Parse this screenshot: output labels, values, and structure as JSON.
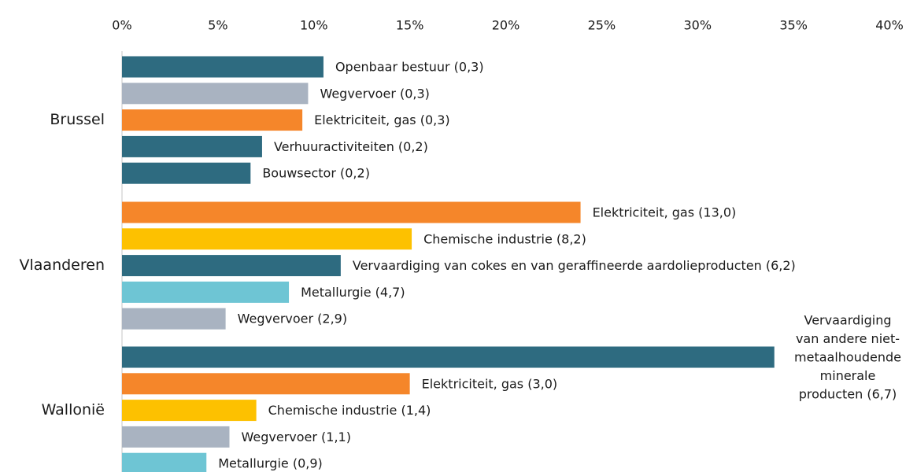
{
  "chart_data": {
    "type": "bar",
    "xlim": [
      0,
      40
    ],
    "xticks": [
      {
        "value": 0,
        "label": "0%"
      },
      {
        "value": 5,
        "label": "5%"
      },
      {
        "value": 10,
        "label": "10%"
      },
      {
        "value": 15,
        "label": "15%"
      },
      {
        "value": 20,
        "label": "20%"
      },
      {
        "value": 25,
        "label": "25%"
      },
      {
        "value": 30,
        "label": "30%"
      },
      {
        "value": 35,
        "label": "35%"
      },
      {
        "value": 40,
        "label": "40%"
      }
    ],
    "groups": [
      {
        "name": "Brussel",
        "bars": [
          {
            "label": [
              "Openbaar bestuur (0,3)"
            ],
            "value": 10.5,
            "color": "#2e6b80"
          },
          {
            "label": [
              "Wegvervoer (0,3)"
            ],
            "value": 9.7,
            "color": "#a9b3c1"
          },
          {
            "label": [
              "Elektriciteit, gas (0,3)"
            ],
            "value": 9.4,
            "color": "#f5862a"
          },
          {
            "label": [
              "Verhuuractiviteiten (0,2)"
            ],
            "value": 7.3,
            "color": "#2e6b80"
          },
          {
            "label": [
              "Bouwsector (0,2)"
            ],
            "value": 6.7,
            "color": "#2e6b80"
          }
        ]
      },
      {
        "name": "Vlaanderen",
        "bars": [
          {
            "label": [
              "Elektriciteit, gas (13,0)"
            ],
            "value": 23.9,
            "color": "#f5862a"
          },
          {
            "label": [
              "Chemische industrie (8,2)"
            ],
            "value": 15.1,
            "color": "#fdc100"
          },
          {
            "label": [
              "Vervaardiging van cokes en van geraffineerde aardolieproducten (6,2)"
            ],
            "value": 11.4,
            "color": "#2e6b80"
          },
          {
            "label": [
              "Metallurgie (4,7)"
            ],
            "value": 8.7,
            "color": "#6ec5d4"
          },
          {
            "label": [
              "Wegvervoer (2,9)"
            ],
            "value": 5.4,
            "color": "#a9b3c1"
          }
        ]
      },
      {
        "name": "Wallonië",
        "bars": [
          {
            "label": [
              "Vervaardiging",
              "van andere niet-",
              "metaalhoudende",
              "minerale",
              "producten (6,7)"
            ],
            "value": 34.0,
            "color": "#2e6b80"
          },
          {
            "label": [
              "Elektriciteit, gas (3,0)"
            ],
            "value": 15.0,
            "color": "#f5862a"
          },
          {
            "label": [
              "Chemische industrie (1,4)"
            ],
            "value": 7.0,
            "color": "#fdc100"
          },
          {
            "label": [
              "Wegvervoer (1,1)"
            ],
            "value": 5.6,
            "color": "#a9b3c1"
          },
          {
            "label": [
              "Metallurgie (0,9)"
            ],
            "value": 4.4,
            "color": "#6ec5d4"
          }
        ]
      }
    ]
  }
}
